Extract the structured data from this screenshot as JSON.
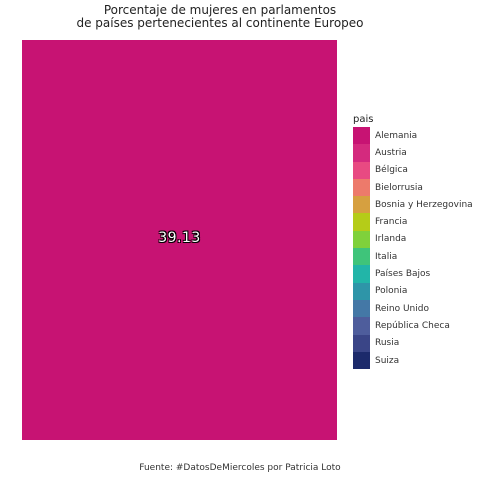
{
  "title_lines": [
    "Porcentaje de mujeres en parlamentos",
    "de países pertenecientes al continente Europeo"
  ],
  "caption": "Fuente: #DatosDeMiercoles por Patricia Loto",
  "colors": {
    "panel_fill": "#C71373"
  },
  "chart_data": {
    "type": "bar",
    "title": "Porcentaje de mujeres en parlamentos de países pertenecientes al continente Europeo",
    "categories": [
      "Alemania"
    ],
    "values": [
      39.13
    ],
    "value_label": "39.13",
    "xlabel": "",
    "ylabel": "",
    "legend_title": "pais",
    "legend_position": "right",
    "legend": [
      {
        "label": "Alemania",
        "color": "#C71373"
      },
      {
        "label": "Austria",
        "color": "#D42A7E"
      },
      {
        "label": "Bélgica",
        "color": "#E84A82"
      },
      {
        "label": "Bielorrusia",
        "color": "#ED7A6B"
      },
      {
        "label": "Bosnia y Herzegovina",
        "color": "#D6A040"
      },
      {
        "label": "Francia",
        "color": "#B5CC18"
      },
      {
        "label": "Irlanda",
        "color": "#7FD13B"
      },
      {
        "label": "Italia",
        "color": "#3FC47A"
      },
      {
        "label": "Países Bajos",
        "color": "#22B5A8"
      },
      {
        "label": "Polonia",
        "color": "#2E95A8"
      },
      {
        "label": "Reino Unido",
        "color": "#4478A6"
      },
      {
        "label": "República Checa",
        "color": "#4E5D9C"
      },
      {
        "label": "Rusia",
        "color": "#3A4587"
      },
      {
        "label": "Suiza",
        "color": "#1C2A6B"
      }
    ]
  }
}
